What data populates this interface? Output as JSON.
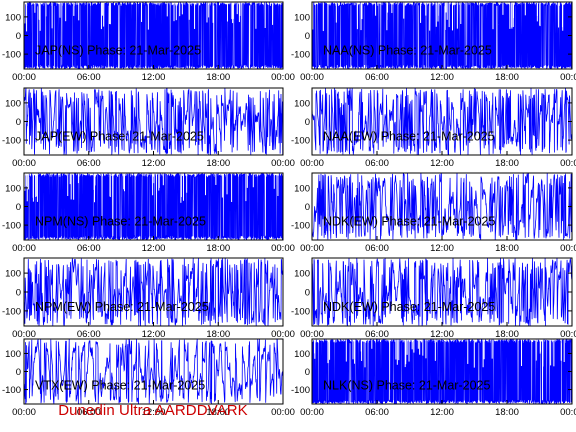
{
  "footer": "Dunedin Ultra AARDDVARK",
  "colors": {
    "trace": "#0000ff",
    "frame": "#000000",
    "background": "#ffffff",
    "footer": "#cc0000"
  },
  "chart_data": [
    {
      "type": "line",
      "title": "JAP(NS) Phase: 21-Mar-2025",
      "x_ticks": [
        "00:00",
        "06:00",
        "12:00",
        "18:00",
        "00:00"
      ],
      "y_ticks": [
        100,
        0,
        -100
      ],
      "xlim": [
        0,
        24
      ],
      "ylim": [
        -180,
        180
      ],
      "x_unit": "hours UT",
      "y_axis_side": "left",
      "trace": "saturated"
    },
    {
      "type": "line",
      "title": "NAA(NS) Phase: 21-Mar-2025",
      "x_ticks": [
        "00:00",
        "06:00",
        "12:00",
        "18:00",
        "00:00"
      ],
      "y_ticks": [
        100,
        0,
        -100
      ],
      "xlim": [
        0,
        24
      ],
      "ylim": [
        -180,
        180
      ],
      "x_unit": "hours UT",
      "y_axis_side": "right",
      "trace": "saturated"
    },
    {
      "type": "line",
      "title": "JAP(EW) Phase: 21-Mar-2025",
      "x_ticks": [
        "00:00",
        "06:00",
        "12:00",
        "18:00",
        "00:00"
      ],
      "y_ticks": [
        100,
        0,
        -100
      ],
      "xlim": [
        0,
        24
      ],
      "ylim": [
        -180,
        180
      ],
      "x_unit": "hours UT",
      "y_axis_side": "left",
      "trace": "wrapping"
    },
    {
      "type": "line",
      "title": "NAA(EW) Phase: 21-Mar-2025",
      "x_ticks": [
        "00:00",
        "06:00",
        "12:00",
        "18:00",
        "00:00"
      ],
      "y_ticks": [
        100,
        0,
        -100
      ],
      "xlim": [
        0,
        24
      ],
      "ylim": [
        -180,
        180
      ],
      "x_unit": "hours UT",
      "y_axis_side": "right",
      "trace": "wrapping"
    },
    {
      "type": "line",
      "title": "NPM(NS) Phase: 21-Mar-2025",
      "x_ticks": [
        "00:00",
        "06:00",
        "12:00",
        "18:00",
        "00:00"
      ],
      "y_ticks": [
        100,
        0,
        -100
      ],
      "xlim": [
        0,
        24
      ],
      "ylim": [
        -180,
        180
      ],
      "x_unit": "hours UT",
      "y_axis_side": "left",
      "trace": "saturated"
    },
    {
      "type": "line",
      "title": "NDK(EW) Phase: 21-Mar-2025",
      "x_ticks": [
        "00:00",
        "06:00",
        "12:00",
        "18:00",
        "00:00"
      ],
      "y_ticks": [
        100,
        0,
        -100
      ],
      "xlim": [
        0,
        24
      ],
      "ylim": [
        -180,
        180
      ],
      "x_unit": "hours UT",
      "y_axis_side": "right",
      "trace": "wrapping"
    },
    {
      "type": "line",
      "title": "NPM(EW) Phase: 21-Mar-2025",
      "x_ticks": [
        "00:00",
        "06:00",
        "12:00",
        "18:00",
        "00:00"
      ],
      "y_ticks": [
        100,
        0,
        -100
      ],
      "xlim": [
        0,
        24
      ],
      "ylim": [
        -180,
        180
      ],
      "x_unit": "hours UT",
      "y_axis_side": "left",
      "trace": "wrapping"
    },
    {
      "type": "line",
      "title": "NDK(EW) Phase: 21-Mar-2025",
      "x_ticks": [
        "00:00",
        "06:00",
        "12:00",
        "18:00",
        "00:00"
      ],
      "y_ticks": [
        100,
        0,
        -100
      ],
      "xlim": [
        0,
        24
      ],
      "ylim": [
        -180,
        180
      ],
      "x_unit": "hours UT",
      "y_axis_side": "right",
      "trace": "wrapping"
    },
    {
      "type": "line",
      "title": "VTX(EW) Phase: 21-Mar-2025",
      "x_ticks": [
        "00:00",
        "06:00",
        "12:00",
        "18:00",
        "00:00"
      ],
      "y_ticks": [
        100,
        0,
        -100
      ],
      "xlim": [
        0,
        24
      ],
      "ylim": [
        -180,
        180
      ],
      "x_unit": "hours UT",
      "y_axis_side": "left",
      "trace": "drifting"
    },
    {
      "type": "line",
      "title": "NLK(NS) Phase: 21-Mar-2025",
      "x_ticks": [
        "00:00",
        "06:00",
        "12:00",
        "18:00",
        "00:00"
      ],
      "y_ticks": [
        100,
        0,
        -100
      ],
      "xlim": [
        0,
        24
      ],
      "ylim": [
        -180,
        180
      ],
      "x_unit": "hours UT",
      "y_axis_side": "right",
      "trace": "saturated"
    }
  ]
}
